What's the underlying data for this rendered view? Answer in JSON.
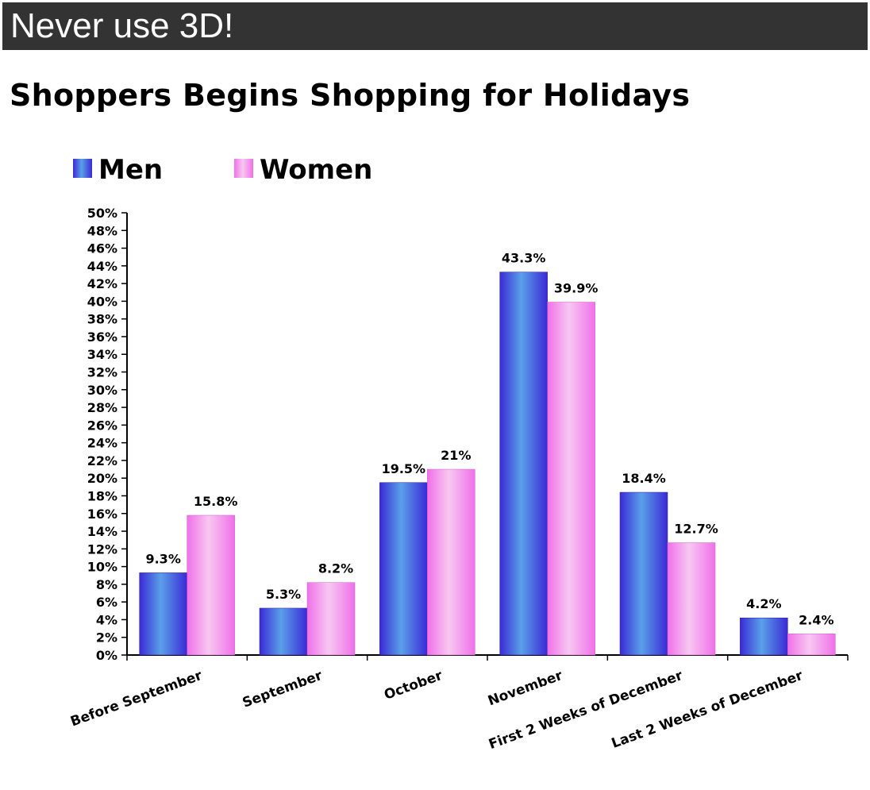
{
  "header": {
    "title": "Never use 3D!"
  },
  "colors": {
    "men_dark": "#3a2ad6",
    "men_light": "#5aa0e8",
    "women_dark": "#f070ea",
    "women_light": "#f7c8f0",
    "header_bg": "#333333"
  },
  "chart_data": {
    "type": "bar",
    "title": "Shoppers Begins Shopping for Holidays",
    "categories": [
      "Before September",
      "September",
      "October",
      "November",
      "First 2 Weeks of December",
      "Last 2 Weeks of December"
    ],
    "series": [
      {
        "name": "Men",
        "values": [
          9.3,
          5.3,
          19.5,
          43.3,
          18.4,
          4.2
        ],
        "labels": [
          "9.3%",
          "5.3%",
          "19.5%",
          "43.3%",
          "18.4%",
          "4.2%"
        ]
      },
      {
        "name": "Women",
        "values": [
          15.8,
          8.2,
          21,
          39.9,
          12.7,
          2.4
        ],
        "labels": [
          "15.8%",
          "8.2%",
          "21%",
          "39.9%",
          "12.7%",
          "2.4%"
        ]
      }
    ],
    "ylim": [
      0,
      50
    ],
    "ytick_step": 2,
    "ytick_suffix": "%",
    "xlabel": "",
    "ylabel": "",
    "legend_position": "top-left",
    "grid": false
  }
}
